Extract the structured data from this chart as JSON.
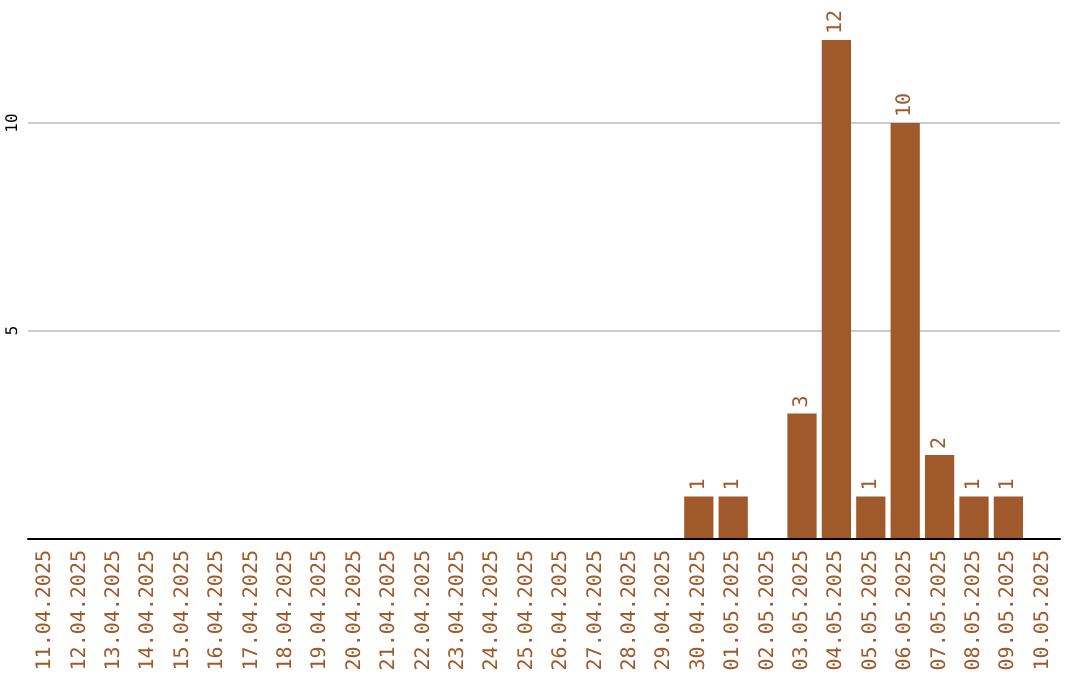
{
  "chart_data": {
    "type": "bar",
    "categories": [
      "11.04.2025",
      "12.04.2025",
      "13.04.2025",
      "14.04.2025",
      "15.04.2025",
      "16.04.2025",
      "17.04.2025",
      "18.04.2025",
      "19.04.2025",
      "20.04.2025",
      "21.04.2025",
      "22.04.2025",
      "23.04.2025",
      "24.04.2025",
      "25.04.2025",
      "26.04.2025",
      "27.04.2025",
      "28.04.2025",
      "29.04.2025",
      "30.04.2025",
      "01.05.2025",
      "02.05.2025",
      "03.05.2025",
      "04.05.2025",
      "05.05.2025",
      "06.05.2025",
      "07.05.2025",
      "08.05.2025",
      "09.05.2025",
      "10.05.2025"
    ],
    "values": [
      0,
      0,
      0,
      0,
      0,
      0,
      0,
      0,
      0,
      0,
      0,
      0,
      0,
      0,
      0,
      0,
      0,
      0,
      0,
      1,
      1,
      0,
      3,
      12,
      1,
      10,
      2,
      1,
      1,
      0
    ],
    "value_labels": [
      null,
      null,
      null,
      null,
      null,
      null,
      null,
      null,
      null,
      null,
      null,
      null,
      null,
      null,
      null,
      null,
      null,
      null,
      null,
      "1",
      "1",
      null,
      "3",
      "12",
      "1",
      "10",
      "2",
      "1",
      "1",
      null
    ],
    "color": "#a0592a",
    "ylim": [
      0,
      12
    ],
    "yticks": [
      5,
      10
    ],
    "grid": "y"
  }
}
